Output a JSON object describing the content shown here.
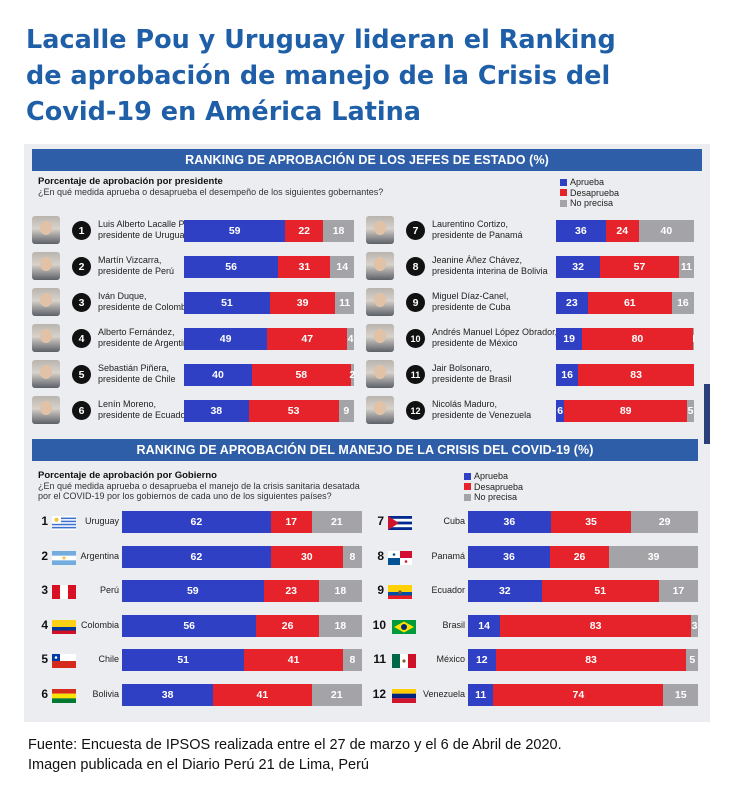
{
  "headline": {
    "line1": "Lacalle Pou y Uruguay lideran el Ranking",
    "line2": "de aprobación de manejo de la Crisis del",
    "line3": "Covid-19 en América Latina"
  },
  "colors": {
    "approve": "#2f40c4",
    "disapprove": "#e6232a",
    "unsure": "#a4a4a8",
    "banner": "#2f5ea8",
    "headline": "#1f5fa8"
  },
  "legend": {
    "approve": "Aprueba",
    "disapprove": "Desaprueba",
    "unsure": "No precisa"
  },
  "presidents_section": {
    "banner": "RANKING DE APROBACIÓN DE LOS JEFES DE ESTADO (%)",
    "subtitle": "Porcentaje de aprobación por presidente",
    "question": "¿En qué medida aprueba o desaprueba el desempeño de los siguientes gobernantes?"
  },
  "countries_section": {
    "banner": "RANKING DE APROBACIÓN DEL MANEJO DE LA CRISIS DEL COVID-19 (%)",
    "subtitle": "Porcentaje de aprobación por Gobierno",
    "question1": "¿En qué medida aprueba o desaprueba el manejo de la crisis sanitaria desatada",
    "question2": "por el COVID-19 por los gobiernos de cada uno de los siguientes países?"
  },
  "footer": {
    "line1": "Fuente: Encuesta de IPSOS realizada entre el 27 de marzo y el 6 de Abril de 2020.",
    "line2": "Imagen publicada en el Diario Perú 21 de Lima, Perú"
  },
  "chart_data": [
    {
      "type": "bar",
      "title": "RANKING DE APROBACIÓN DE LOS JEFES DE ESTADO (%)",
      "stacked": true,
      "orientation": "horizontal",
      "series_names": [
        "Aprueba",
        "Desaprueba",
        "No precisa"
      ],
      "rows": [
        {
          "rank": "1",
          "name": "Luis Alberto Lacalle Pou,",
          "role": "presidente de Uruguay",
          "approve": 59,
          "disapprove": 22,
          "unsure": 18
        },
        {
          "rank": "2",
          "name": "Martín Vizcarra,",
          "role": "presidente de Perú",
          "approve": 56,
          "disapprove": 31,
          "unsure": 14
        },
        {
          "rank": "3",
          "name": "Iván Duque,",
          "role": "presidente de Colombia",
          "approve": 51,
          "disapprove": 39,
          "unsure": 11
        },
        {
          "rank": "4",
          "name": "Alberto Fernández,",
          "role": "presidente de Argentina",
          "approve": 49,
          "disapprove": 47,
          "unsure": 4
        },
        {
          "rank": "5",
          "name": "Sebastián Piñera,",
          "role": "presidente de Chile",
          "approve": 40,
          "disapprove": 58,
          "unsure": 2
        },
        {
          "rank": "6",
          "name": "Lenín Moreno,",
          "role": "presidente de Ecuador",
          "approve": 38,
          "disapprove": 53,
          "unsure": 9
        },
        {
          "rank": "7",
          "name": "Laurentino Cortizo,",
          "role": "presidente de Panamá",
          "approve": 36,
          "disapprove": 24,
          "unsure": 40
        },
        {
          "rank": "8",
          "name": "Jeanine Áñez Chávez,",
          "role": "presidenta interina de Bolivia",
          "approve": 32,
          "disapprove": 57,
          "unsure": 11
        },
        {
          "rank": "9",
          "name": "Miguel Díaz-Canel,",
          "role": "presidente de Cuba",
          "approve": 23,
          "disapprove": 61,
          "unsure": 16
        },
        {
          "rank": "10",
          "name": "Andrés Manuel López Obrador,",
          "role": "presidente de México",
          "approve": 19,
          "disapprove": 80,
          "unsure": 1
        },
        {
          "rank": "11",
          "name": "Jair Bolsonaro,",
          "role": "presidente de Brasil",
          "approve": 16,
          "disapprove": 83,
          "unsure": 0
        },
        {
          "rank": "12",
          "name": "Nicolás Maduro,",
          "role": "presidente de Venezuela",
          "approve": 6,
          "disapprove": 89,
          "unsure": 5
        }
      ]
    },
    {
      "type": "bar",
      "title": "RANKING DE APROBACIÓN DEL MANEJO DE LA CRISIS DEL COVID-19 (%)",
      "stacked": true,
      "orientation": "horizontal",
      "series_names": [
        "Aprueba",
        "Desaprueba",
        "No precisa"
      ],
      "rows": [
        {
          "rank": "1",
          "country": "Uruguay",
          "flag": "uruguay",
          "approve": 62,
          "disapprove": 17,
          "unsure": 21
        },
        {
          "rank": "2",
          "country": "Argentina",
          "flag": "argentina",
          "approve": 62,
          "disapprove": 30,
          "unsure": 8
        },
        {
          "rank": "3",
          "country": "Perú",
          "flag": "peru",
          "approve": 59,
          "disapprove": 23,
          "unsure": 18
        },
        {
          "rank": "4",
          "country": "Colombia",
          "flag": "colombia",
          "approve": 56,
          "disapprove": 26,
          "unsure": 18
        },
        {
          "rank": "5",
          "country": "Chile",
          "flag": "chile",
          "approve": 51,
          "disapprove": 41,
          "unsure": 8
        },
        {
          "rank": "6",
          "country": "Bolivia",
          "flag": "bolivia",
          "approve": 38,
          "disapprove": 41,
          "unsure": 21
        },
        {
          "rank": "7",
          "country": "Cuba",
          "flag": "cuba",
          "approve": 36,
          "disapprove": 35,
          "unsure": 29
        },
        {
          "rank": "8",
          "country": "Panamá",
          "flag": "panama",
          "approve": 36,
          "disapprove": 26,
          "unsure": 39
        },
        {
          "rank": "9",
          "country": "Ecuador",
          "flag": "ecuador",
          "approve": 32,
          "disapprove": 51,
          "unsure": 17
        },
        {
          "rank": "10",
          "country": "Brasil",
          "flag": "brasil",
          "approve": 14,
          "disapprove": 83,
          "unsure": 3
        },
        {
          "rank": "11",
          "country": "México",
          "flag": "mexico",
          "approve": 12,
          "disapprove": 83,
          "unsure": 5
        },
        {
          "rank": "12",
          "country": "Venezuela",
          "flag": "venezuela",
          "approve": 11,
          "disapprove": 74,
          "unsure": 15
        }
      ]
    }
  ]
}
